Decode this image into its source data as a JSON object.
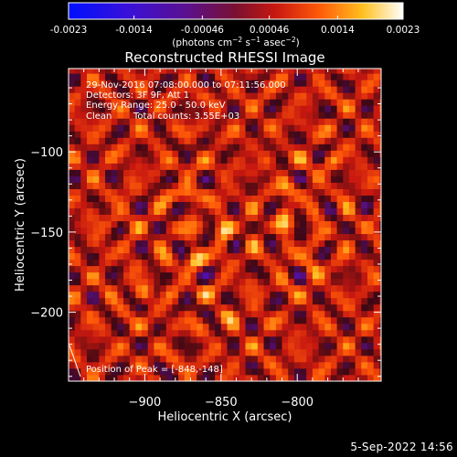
{
  "colorbar": {
    "colormap": "hot-on-blue (blue → purple → red → orange → yellow → white)",
    "ticks": [
      "-0.0023",
      "-0.0014",
      "-0.00046",
      "0.00046",
      "0.0014",
      "0.0023"
    ],
    "tick_values": [
      -0.0023,
      -0.0014,
      -0.00046,
      0.00046,
      0.0014,
      0.0023
    ],
    "range": [
      -0.0023,
      0.0023
    ]
  },
  "chart_data": {
    "type": "heatmap",
    "title": "Reconstructed RHESSI Image",
    "xlabel": "Heliocentric X (arcsec)",
    "ylabel": "Heliocentric Y (arcsec)",
    "xlim": [
      -950,
      -745
    ],
    "ylim": [
      -243,
      -48
    ],
    "xticks": [
      -900,
      -850,
      -800
    ],
    "yticks": [
      -100,
      -150,
      -200
    ],
    "xtick_labels": [
      "−900",
      "−850",
      "−800"
    ],
    "ytick_labels": [
      "−100",
      "−150",
      "−200"
    ],
    "info_lines": [
      "29-Nov-2016 07:08:00.000 to 07:11:56.000",
      "Detectors: 3F 9F, Att 1",
      "Energy Range: 25.0 - 50.0 keV"
    ],
    "clean_label": "Clean",
    "total_counts_label": "Total counts: 3.55E+03",
    "peak_label": "Position of Peak = [-848,-148]",
    "peak_position": [
      -848,
      -148
    ],
    "pixel_size_arcsec": 4,
    "bright_sources": [
      {
        "x": -848,
        "y": -148,
        "value": 0.0023
      },
      {
        "x": -868,
        "y": -168,
        "value": 0.002
      },
      {
        "x": -872,
        "y": -126,
        "value": 0.0018
      },
      {
        "x": -808,
        "y": -145,
        "value": 0.0017
      },
      {
        "x": -806,
        "y": -122,
        "value": 0.0016
      },
      {
        "x": -790,
        "y": -172,
        "value": 0.0015
      },
      {
        "x": -900,
        "y": -188,
        "value": 0.0013
      },
      {
        "x": -845,
        "y": -202,
        "value": 0.0013
      },
      {
        "x": -920,
        "y": -142,
        "value": 0.0012
      },
      {
        "x": -778,
        "y": -105,
        "value": 0.0012
      }
    ],
    "ring_period_arcsec": 21,
    "grid": false
  },
  "footer": {
    "date": "5-Sep-2022 14:56"
  }
}
